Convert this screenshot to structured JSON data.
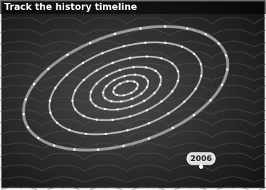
{
  "header": {
    "title": "Track the history timeline"
  },
  "timeline": {
    "current_label": "2006"
  }
}
